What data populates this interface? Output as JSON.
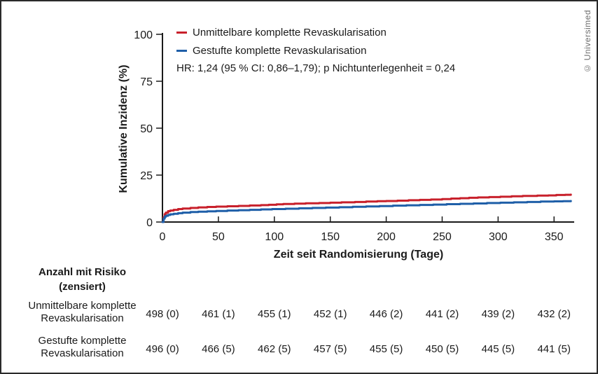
{
  "watermark": "© Universimed",
  "chart_data": {
    "type": "line",
    "subtype": "step-cumulative-incidence",
    "xlabel": "Zeit seit Randomisierung (Tage)",
    "ylabel": "Kumulative Inzidenz (%)",
    "xlim": [
      0,
      368
    ],
    "ylim": [
      0,
      100
    ],
    "xticks": [
      0,
      50,
      100,
      150,
      200,
      250,
      300,
      350
    ],
    "yticks": [
      0,
      25,
      50,
      75,
      100
    ],
    "grid": false,
    "legend_position": "top-left-inside",
    "annotation": "HR: 1,24 (95 % CI: 0,86–1,79); p Nichtunterlegenheit = 0,24",
    "axis_color": "#1a1a1a",
    "series": [
      {
        "name": "Unmittelbare komplette Revaskularisation",
        "color": "#c8202b",
        "x": [
          0,
          1,
          2,
          3,
          5,
          7,
          10,
          14,
          18,
          25,
          32,
          40,
          48,
          58,
          68,
          78,
          88,
          95,
          102,
          108,
          118,
          128,
          140,
          150,
          160,
          172,
          182,
          192,
          200,
          210,
          220,
          230,
          240,
          250,
          258,
          266,
          274,
          282,
          292,
          302,
          312,
          322,
          335,
          345,
          352,
          360,
          365
        ],
        "y": [
          0,
          2.5,
          4.2,
          5.0,
          5.8,
          6.1,
          6.5,
          6.9,
          7.2,
          7.5,
          7.8,
          8.0,
          8.2,
          8.4,
          8.6,
          8.8,
          9.0,
          9.2,
          9.4,
          9.6,
          9.8,
          10.0,
          10.1,
          10.3,
          10.5,
          10.7,
          10.9,
          11.1,
          11.2,
          11.4,
          11.6,
          11.8,
          12.0,
          12.2,
          12.5,
          12.7,
          12.9,
          13.1,
          13.3,
          13.5,
          13.7,
          13.9,
          14.1,
          14.2,
          14.4,
          14.5,
          14.6
        ]
      },
      {
        "name": "Gestufte komplette Revaskularisation",
        "color": "#1f5fa8",
        "x": [
          0,
          1,
          2,
          3,
          5,
          7,
          10,
          14,
          18,
          25,
          32,
          40,
          48,
          58,
          68,
          78,
          88,
          98,
          110,
          122,
          134,
          146,
          158,
          170,
          182,
          194,
          206,
          218,
          230,
          242,
          254,
          266,
          278,
          290,
          302,
          314,
          326,
          338,
          350,
          358,
          365
        ],
        "y": [
          0,
          1.8,
          2.8,
          3.3,
          3.8,
          4.1,
          4.4,
          4.7,
          5.0,
          5.3,
          5.5,
          5.7,
          5.9,
          6.1,
          6.3,
          6.5,
          6.7,
          6.9,
          7.1,
          7.3,
          7.5,
          7.7,
          7.9,
          8.1,
          8.3,
          8.5,
          8.7,
          8.9,
          9.1,
          9.3,
          9.5,
          9.7,
          9.9,
          10.1,
          10.3,
          10.5,
          10.7,
          10.9,
          11.0,
          11.1,
          11.2
        ]
      }
    ]
  },
  "risk_table": {
    "header_line1": "Anzahl mit Risiko",
    "header_line2": "(zensiert)",
    "rows": [
      {
        "label_line1": "Unmittelbare komplette",
        "label_line2": "Revaskularisation",
        "values": [
          "498 (0)",
          "461 (1)",
          "455 (1)",
          "452 (1)",
          "446 (2)",
          "441 (2)",
          "439 (2)",
          "432 (2)"
        ]
      },
      {
        "label_line1": "Gestufte komplette",
        "label_line2": "Revaskularisation",
        "values": [
          "496 (0)",
          "466 (5)",
          "462 (5)",
          "457 (5)",
          "455 (5)",
          "450 (5)",
          "445 (5)",
          "441 (5)"
        ]
      }
    ]
  }
}
